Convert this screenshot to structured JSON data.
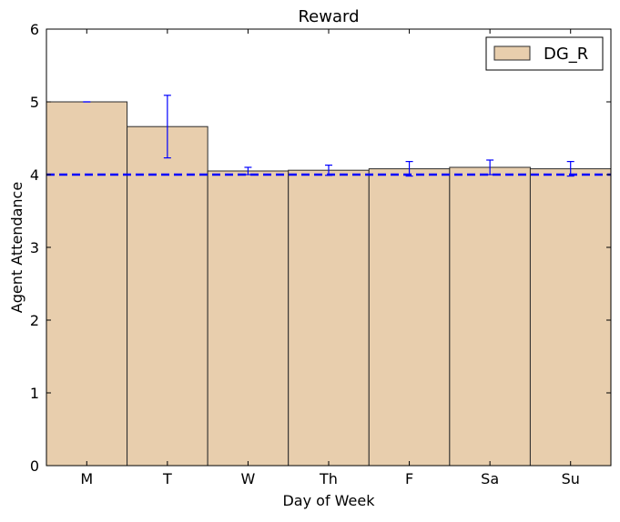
{
  "chart_data": {
    "type": "bar",
    "title": "Reward",
    "xlabel": "Day of Week",
    "ylabel": "Agent Attendance",
    "categories": [
      "M",
      "T",
      "W",
      "Th",
      "F",
      "Sa",
      "Su"
    ],
    "series": [
      {
        "name": "DG_R",
        "values": [
          5.0,
          4.66,
          4.05,
          4.06,
          4.08,
          4.1,
          4.08
        ],
        "error": [
          0.0,
          0.43,
          0.05,
          0.07,
          0.1,
          0.1,
          0.1
        ],
        "color": "#e8cead",
        "edge_color": "#2b2b2b",
        "error_color": "#0000ff"
      }
    ],
    "reference_line": {
      "y": 4.0,
      "color": "#0000ff",
      "style": "dashed"
    },
    "ylim": [
      0,
      6
    ],
    "yticks": [
      "0",
      "1",
      "2",
      "3",
      "4",
      "5",
      "6"
    ],
    "grid": false,
    "legend_position": "top-right"
  }
}
